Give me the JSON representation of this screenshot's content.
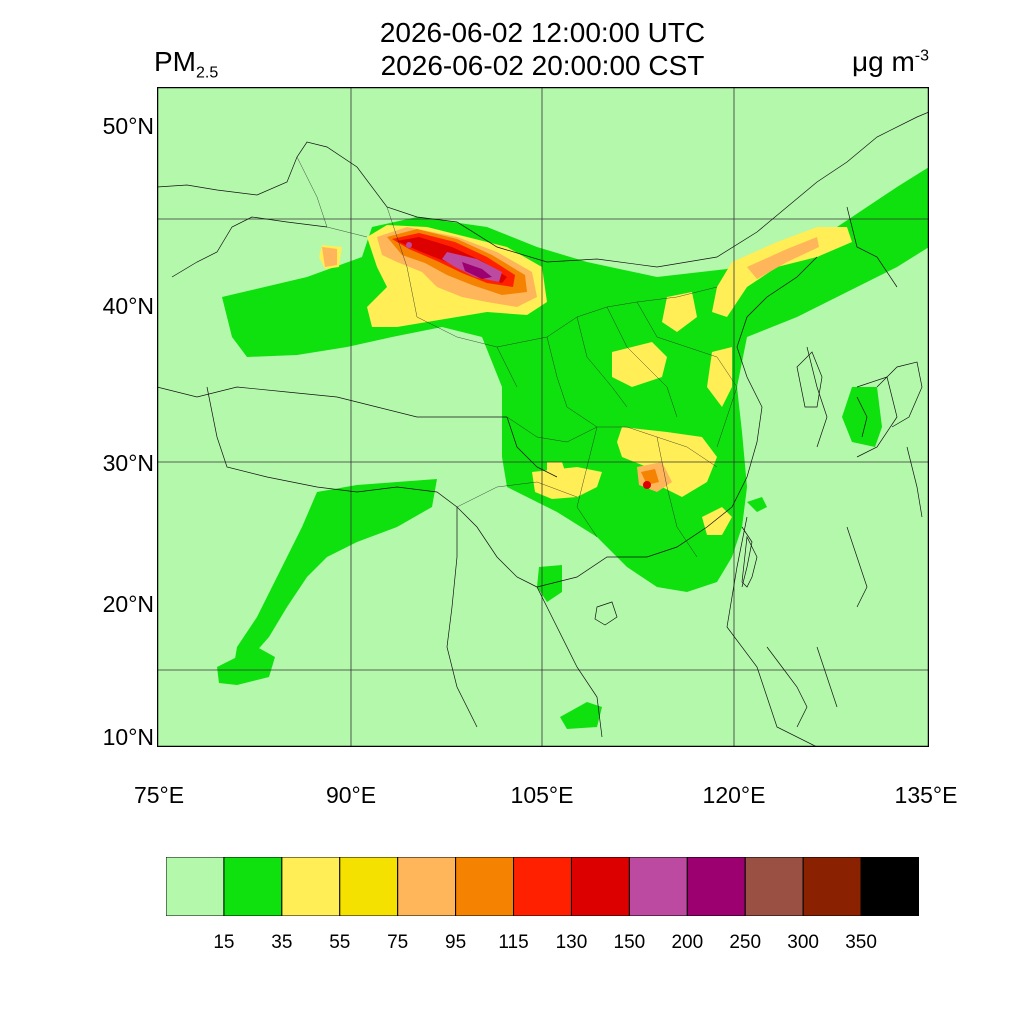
{
  "header": {
    "variable_main": "PM",
    "variable_sub": "2.5",
    "title_utc": "2026-06-02 12:00:00 UTC",
    "title_cst": "2026-06-02 20:00:00 CST",
    "unit_main": "μg m",
    "unit_exp": "-3"
  },
  "map": {
    "lat_ticks": [
      "50°N",
      "40°N",
      "30°N",
      "20°N",
      "10°N"
    ],
    "lon_ticks": [
      "75°E",
      "90°E",
      "105°E",
      "120°E",
      "135°E"
    ],
    "background_color": "#b4f8ac"
  },
  "legend": {
    "colors": [
      "#b4f8ac",
      "#0fe10f",
      "#ffee55",
      "#f5e100",
      "#ffb55a",
      "#f58200",
      "#ff2000",
      "#dc0000",
      "#bb4aa0",
      "#9c0070",
      "#9a5042",
      "#8a2100",
      "#000000"
    ],
    "labels": [
      "15",
      "35",
      "55",
      "75",
      "95",
      "115",
      "130",
      "150",
      "200",
      "250",
      "300",
      "350"
    ]
  }
}
